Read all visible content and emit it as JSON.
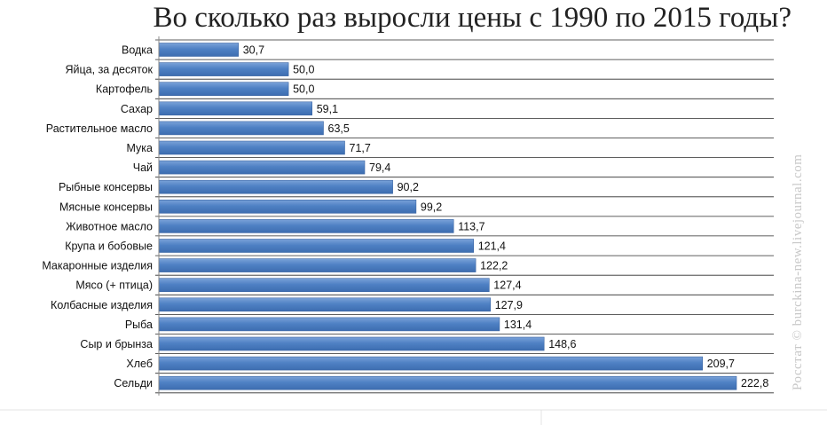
{
  "chart_data": {
    "type": "bar",
    "orientation": "horizontal",
    "title": "Во сколько раз выросли цены с 1990 по 2015 годы?",
    "watermark": "Росстат © burckina-new.livejournal.com",
    "categories": [
      "Водка",
      "Яйца, за десяток",
      "Картофель",
      "Сахар",
      "Растительное масло",
      "Мука",
      "Чай",
      "Рыбные консервы",
      "Мясные консервы",
      "Животное масло",
      "Крупа и бобовые",
      "Макаронные изделия",
      "Мясо (+ птица)",
      "Колбасные изделия",
      "Рыба",
      "Сыр и брынза",
      "Хлеб",
      "Сельди"
    ],
    "values": [
      30.7,
      50.0,
      50.0,
      59.1,
      63.5,
      71.7,
      79.4,
      90.2,
      99.2,
      113.7,
      121.4,
      122.2,
      127.4,
      127.9,
      131.4,
      148.6,
      209.7,
      222.8
    ],
    "value_labels": [
      "30,7",
      "50,0",
      "50,0",
      "59,1",
      "63,5",
      "71,7",
      "79,4",
      "90,2",
      "99,2",
      "113,7",
      "121,4",
      "122,2",
      "127,4",
      "127,9",
      "131,4",
      "148,6",
      "209,7",
      "222,8"
    ],
    "xlim": [
      0,
      222.8
    ],
    "grid": "horizontal separators",
    "legend": "none",
    "colors": {
      "bar": "#4f81c4",
      "bar_highlight": "#7aa2d8",
      "grid": "#2a2a2a",
      "axis": "#888888"
    }
  }
}
